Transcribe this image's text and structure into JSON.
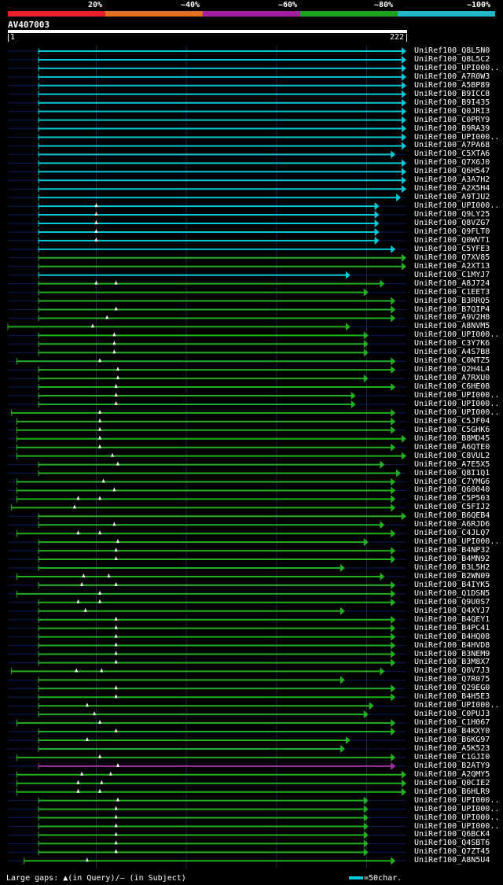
{
  "legend": {
    "labels": [
      "20%",
      "~40%",
      "~60%",
      "~80%",
      "~100%"
    ],
    "colors": [
      "#e8202a",
      "#e07020",
      "#a020a0",
      "#20a020",
      "#20b8c8"
    ]
  },
  "query": {
    "id": "AV407003",
    "start": "1",
    "end": "222",
    "length": 222
  },
  "colors": {
    "cyan": "#00c8d8",
    "green": "#20b020",
    "magenta": "#a030a0",
    "dark": "#0a1a60"
  },
  "hits": [
    {
      "label": "UniRef100_Q8L5N0",
      "color": "cyan",
      "start": 18,
      "end": 222,
      "full": true
    },
    {
      "label": "UniRef100_Q8L5C2",
      "color": "cyan",
      "start": 18,
      "end": 222,
      "full": true
    },
    {
      "label": "UniRef100_UPI000..",
      "color": "cyan",
      "start": 18,
      "end": 222,
      "full": true
    },
    {
      "label": "UniRef100_A7R0W3",
      "color": "cyan",
      "start": 18,
      "end": 222,
      "full": true
    },
    {
      "label": "UniRef100_A5BP89",
      "color": "cyan",
      "start": 18,
      "end": 222,
      "full": true
    },
    {
      "label": "UniRef100_B9ICC8",
      "color": "cyan",
      "start": 18,
      "end": 222,
      "full": true
    },
    {
      "label": "UniRef100_B9I435",
      "color": "cyan",
      "start": 18,
      "end": 222,
      "full": true
    },
    {
      "label": "UniRef100_Q0JRI3",
      "color": "cyan",
      "start": 18,
      "end": 222,
      "full": true
    },
    {
      "label": "UniRef100_C0PRY9",
      "color": "cyan",
      "start": 18,
      "end": 222,
      "full": true
    },
    {
      "label": "UniRef100_B9RA39",
      "color": "cyan",
      "start": 18,
      "end": 222,
      "full": true
    },
    {
      "label": "UniRef100_UPI000..",
      "color": "cyan",
      "start": 18,
      "end": 222,
      "full": true
    },
    {
      "label": "UniRef100_A7PA68",
      "color": "cyan",
      "start": 18,
      "end": 222,
      "full": true
    },
    {
      "label": "UniRef100_C5XTA6",
      "color": "cyan",
      "start": 18,
      "end": 216,
      "full": false
    },
    {
      "label": "UniRef100_Q7X6J0",
      "color": "cyan",
      "start": 18,
      "end": 222,
      "full": true
    },
    {
      "label": "UniRef100_Q6H547",
      "color": "cyan",
      "start": 18,
      "end": 222,
      "full": true
    },
    {
      "label": "UniRef100_A3A7H2",
      "color": "cyan",
      "start": 18,
      "end": 222,
      "full": true
    },
    {
      "label": "UniRef100_A2X5H4",
      "color": "cyan",
      "start": 18,
      "end": 222,
      "full": true
    },
    {
      "label": "UniRef100_A9TJU2",
      "color": "cyan",
      "start": 18,
      "end": 219,
      "full": false
    },
    {
      "label": "UniRef100_UPI000..",
      "color": "cyan",
      "start": 18,
      "end": 207,
      "full": true,
      "tri": [
        50
      ]
    },
    {
      "label": "UniRef100_Q9LY25",
      "color": "cyan",
      "start": 18,
      "end": 207,
      "full": true,
      "tri": [
        50
      ]
    },
    {
      "label": "UniRef100_Q8VZG7",
      "color": "cyan",
      "start": 18,
      "end": 207,
      "full": true,
      "tri": [
        50
      ]
    },
    {
      "label": "UniRef100_Q9FLT0",
      "color": "cyan",
      "start": 18,
      "end": 207,
      "full": true,
      "tri": [
        50
      ]
    },
    {
      "label": "UniRef100_Q0WVT1",
      "color": "cyan",
      "start": 18,
      "end": 207,
      "full": true,
      "tri": [
        50
      ]
    },
    {
      "label": "UniRef100_C5YFE3",
      "color": "cyan",
      "start": 18,
      "end": 216,
      "full": true
    },
    {
      "label": "UniRef100_Q7XV85",
      "color": "green",
      "start": 18,
      "end": 222,
      "full": true
    },
    {
      "label": "UniRef100_A2XT13",
      "color": "green",
      "start": 18,
      "end": 222,
      "full": true
    },
    {
      "label": "UniRef100_C1MYJ7",
      "color": "cyan",
      "start": 18,
      "end": 191,
      "full": true
    },
    {
      "label": "UniRef100_A8J724",
      "color": "green",
      "start": 18,
      "end": 210,
      "full": true,
      "tri": [
        50,
        61
      ]
    },
    {
      "label": "UniRef100_C1EET3",
      "color": "green",
      "start": 18,
      "end": 201,
      "full": true
    },
    {
      "label": "UniRef100_B3RRQ5",
      "color": "green",
      "start": 18,
      "end": 216,
      "full": true
    },
    {
      "label": "UniRef100_B7QIP4",
      "color": "green",
      "start": 18,
      "end": 216,
      "full": true,
      "tri": [
        61
      ]
    },
    {
      "label": "UniRef100_A9V2H8",
      "color": "green",
      "start": 18,
      "end": 216,
      "full": true,
      "tri": [
        56
      ]
    },
    {
      "label": "UniRef100_A8NVM5",
      "color": "green",
      "start": 1,
      "end": 191,
      "full": true,
      "tri": [
        48
      ]
    },
    {
      "label": "UniRef100_UPI000..",
      "color": "green",
      "start": 18,
      "end": 201,
      "full": true,
      "tri": [
        60
      ]
    },
    {
      "label": "UniRef100_C3Y7K6",
      "color": "green",
      "start": 18,
      "end": 201,
      "full": true,
      "tri": [
        60
      ]
    },
    {
      "label": "UniRef100_A4S7B8",
      "color": "green",
      "start": 18,
      "end": 201,
      "full": true,
      "tri": [
        60
      ]
    },
    {
      "label": "UniRef100_C0NTZ5",
      "color": "green",
      "start": 6,
      "end": 216,
      "full": true,
      "tri": [
        52
      ]
    },
    {
      "label": "UniRef100_Q2H4L4",
      "color": "green",
      "start": 18,
      "end": 216,
      "full": true,
      "tri": [
        62
      ]
    },
    {
      "label": "UniRef100_A7RXU0",
      "color": "green",
      "start": 18,
      "end": 201,
      "full": true,
      "tri": [
        62
      ]
    },
    {
      "label": "UniRef100_C6HE08",
      "color": "green",
      "start": 18,
      "end": 216,
      "full": true,
      "tri": [
        61
      ]
    },
    {
      "label": "UniRef100_UPI000..",
      "color": "green",
      "start": 18,
      "end": 194,
      "full": true,
      "tri": [
        61
      ]
    },
    {
      "label": "UniRef100_UPI000..",
      "color": "green",
      "start": 18,
      "end": 194,
      "full": true,
      "tri": [
        61
      ]
    },
    {
      "label": "UniRef100_UPI000..",
      "color": "green",
      "start": 3,
      "end": 216,
      "full": true,
      "tri": [
        52
      ]
    },
    {
      "label": "UniRef100_C5JF04",
      "color": "green",
      "start": 6,
      "end": 216,
      "full": true,
      "tri": [
        52
      ]
    },
    {
      "label": "UniRef100_C5GHK6",
      "color": "green",
      "start": 6,
      "end": 216,
      "full": true,
      "tri": [
        52
      ]
    },
    {
      "label": "UniRef100_B8MD45",
      "color": "green",
      "start": 6,
      "end": 222,
      "full": true,
      "tri": [
        52
      ]
    },
    {
      "label": "UniRef100_A6QTE0",
      "color": "green",
      "start": 6,
      "end": 216,
      "full": true,
      "tri": [
        52
      ]
    },
    {
      "label": "UniRef100_C8VUL2",
      "color": "green",
      "start": 6,
      "end": 222,
      "full": true,
      "tri": [
        59
      ]
    },
    {
      "label": "UniRef100_A7E5X5",
      "color": "green",
      "start": 18,
      "end": 210,
      "full": true,
      "tri": [
        62
      ]
    },
    {
      "label": "UniRef100_Q8I1Q1",
      "color": "green",
      "start": 18,
      "end": 219,
      "full": true
    },
    {
      "label": "UniRef100_C7YMG6",
      "color": "green",
      "start": 6,
      "end": 216,
      "full": true,
      "tri": [
        54
      ]
    },
    {
      "label": "UniRef100_Q60040",
      "color": "green",
      "start": 6,
      "end": 216,
      "full": true,
      "tri": [
        60
      ]
    },
    {
      "label": "UniRef100_C5P503",
      "color": "green",
      "start": 6,
      "end": 216,
      "full": true,
      "tri": [
        40,
        52
      ]
    },
    {
      "label": "UniRef100_C5FIJ2",
      "color": "green",
      "start": 3,
      "end": 216,
      "full": true,
      "tri": [
        38
      ]
    },
    {
      "label": "UniRef100_B6QEB4",
      "color": "green",
      "start": 18,
      "end": 222,
      "full": true
    },
    {
      "label": "UniRef100_A6RJD6",
      "color": "green",
      "start": 18,
      "end": 210,
      "full": true,
      "tri": [
        60
      ]
    },
    {
      "label": "UniRef100_C4JLQ7",
      "color": "green",
      "start": 6,
      "end": 216,
      "full": true,
      "tri": [
        40,
        52
      ]
    },
    {
      "label": "UniRef100_UPI000..",
      "color": "green",
      "start": 18,
      "end": 201,
      "full": true,
      "tri": [
        62
      ]
    },
    {
      "label": "UniRef100_B4NP32",
      "color": "green",
      "start": 18,
      "end": 216,
      "full": true,
      "tri": [
        61
      ]
    },
    {
      "label": "UniRef100_B4MN92",
      "color": "green",
      "start": 18,
      "end": 216,
      "full": true,
      "tri": [
        61
      ]
    },
    {
      "label": "UniRef100_B3L5H2",
      "color": "green",
      "start": 18,
      "end": 188,
      "full": true
    },
    {
      "label": "UniRef100_B2WN09",
      "color": "green",
      "start": 6,
      "end": 210,
      "full": true,
      "tri": [
        43,
        57
      ]
    },
    {
      "label": "UniRef100_B4IYK5",
      "color": "green",
      "start": 18,
      "end": 216,
      "full": true,
      "tri": [
        42,
        61
      ]
    },
    {
      "label": "UniRef100_Q1DSN5",
      "color": "green",
      "start": 6,
      "end": 216,
      "full": true,
      "tri": [
        52
      ]
    },
    {
      "label": "UniRef100_Q9U0S7",
      "color": "green",
      "start": 18,
      "end": 216,
      "full": true,
      "tri": [
        40,
        52
      ]
    },
    {
      "label": "UniRef100_Q4XYJ7",
      "color": "green",
      "start": 18,
      "end": 188,
      "full": true,
      "tri": [
        44
      ]
    },
    {
      "label": "UniRef100_B4QEY1",
      "color": "green",
      "start": 18,
      "end": 216,
      "full": true,
      "tri": [
        61
      ]
    },
    {
      "label": "UniRef100_B4PC41",
      "color": "green",
      "start": 18,
      "end": 216,
      "full": true,
      "tri": [
        61
      ]
    },
    {
      "label": "UniRef100_B4HQ08",
      "color": "green",
      "start": 18,
      "end": 216,
      "full": true,
      "tri": [
        61
      ]
    },
    {
      "label": "UniRef100_B4HVD8",
      "color": "green",
      "start": 18,
      "end": 216,
      "full": true,
      "tri": [
        61
      ]
    },
    {
      "label": "UniRef100_B3NEM9",
      "color": "green",
      "start": 18,
      "end": 216,
      "full": true,
      "tri": [
        61
      ]
    },
    {
      "label": "UniRef100_B3M8X7",
      "color": "green",
      "start": 18,
      "end": 216,
      "full": true,
      "tri": [
        61
      ]
    },
    {
      "label": "UniRef100_Q0V7J3",
      "color": "green",
      "start": 3,
      "end": 210,
      "full": true,
      "tri": [
        39,
        53
      ]
    },
    {
      "label": "UniRef100_Q7R075",
      "color": "green",
      "start": 18,
      "end": 188,
      "full": true
    },
    {
      "label": "UniRef100_Q29EG0",
      "color": "green",
      "start": 18,
      "end": 216,
      "full": true,
      "tri": [
        61
      ]
    },
    {
      "label": "UniRef100_B4H5E3",
      "color": "green",
      "start": 18,
      "end": 216,
      "full": true,
      "tri": [
        61
      ]
    },
    {
      "label": "UniRef100_UPI000..",
      "color": "green",
      "start": 18,
      "end": 204,
      "full": true,
      "tri": [
        45
      ]
    },
    {
      "label": "UniRef100_C0PUJ3",
      "color": "green",
      "start": 18,
      "end": 201,
      "full": true,
      "tri": [
        49
      ]
    },
    {
      "label": "UniRef100_C1H067",
      "color": "green",
      "start": 6,
      "end": 216,
      "full": true,
      "tri": [
        52
      ]
    },
    {
      "label": "UniRef100_B4KXY0",
      "color": "green",
      "start": 18,
      "end": 216,
      "full": true,
      "tri": [
        61
      ]
    },
    {
      "label": "UniRef100_B6KG97",
      "color": "green",
      "start": 18,
      "end": 191,
      "full": true,
      "tri": [
        45
      ]
    },
    {
      "label": "UniRef100_A5K523",
      "color": "green",
      "start": 18,
      "end": 188,
      "full": true
    },
    {
      "label": "UniRef100_C1GJI0",
      "color": "green",
      "start": 6,
      "end": 216,
      "full": true,
      "tri": [
        52
      ]
    },
    {
      "label": "UniRef100_B2ATY9",
      "color": "magenta",
      "start": 18,
      "end": 216,
      "full": true,
      "tri": [
        62
      ]
    },
    {
      "label": "UniRef100_A2QMY5",
      "color": "green",
      "start": 6,
      "end": 222,
      "full": true,
      "tri": [
        42,
        58
      ]
    },
    {
      "label": "UniRef100_Q0CIE2",
      "color": "green",
      "start": 6,
      "end": 222,
      "full": true,
      "tri": [
        40,
        53
      ]
    },
    {
      "label": "UniRef100_B6HLR9",
      "color": "green",
      "start": 6,
      "end": 222,
      "full": true,
      "tri": [
        40,
        52
      ]
    },
    {
      "label": "UniRef100_UPI000..",
      "color": "green",
      "start": 18,
      "end": 201,
      "full": true,
      "tri": [
        62
      ]
    },
    {
      "label": "UniRef100_UPI000..",
      "color": "green",
      "start": 18,
      "end": 201,
      "full": true,
      "tri": [
        61
      ]
    },
    {
      "label": "UniRef100_UPI000..",
      "color": "green",
      "start": 18,
      "end": 201,
      "full": true,
      "tri": [
        61
      ]
    },
    {
      "label": "UniRef100_UPI000..",
      "color": "green",
      "start": 18,
      "end": 201,
      "full": true,
      "tri": [
        61
      ]
    },
    {
      "label": "UniRef100_Q6BCK4",
      "color": "green",
      "start": 18,
      "end": 201,
      "full": true,
      "tri": [
        61
      ]
    },
    {
      "label": "UniRef100_Q4SBT6",
      "color": "green",
      "start": 18,
      "end": 201,
      "full": true,
      "tri": [
        61
      ]
    },
    {
      "label": "UniRef100_Q7ZT45",
      "color": "green",
      "start": 18,
      "end": 201,
      "full": true,
      "tri": [
        61
      ]
    },
    {
      "label": "UniRef100_A8N5U4",
      "color": "green",
      "start": 10,
      "end": 216,
      "full": true,
      "tri": [
        45
      ]
    }
  ],
  "footer": {
    "gaps_note": "Large gaps: ▲(in Query)/– (in Subject)",
    "scale_key": "=50char."
  }
}
